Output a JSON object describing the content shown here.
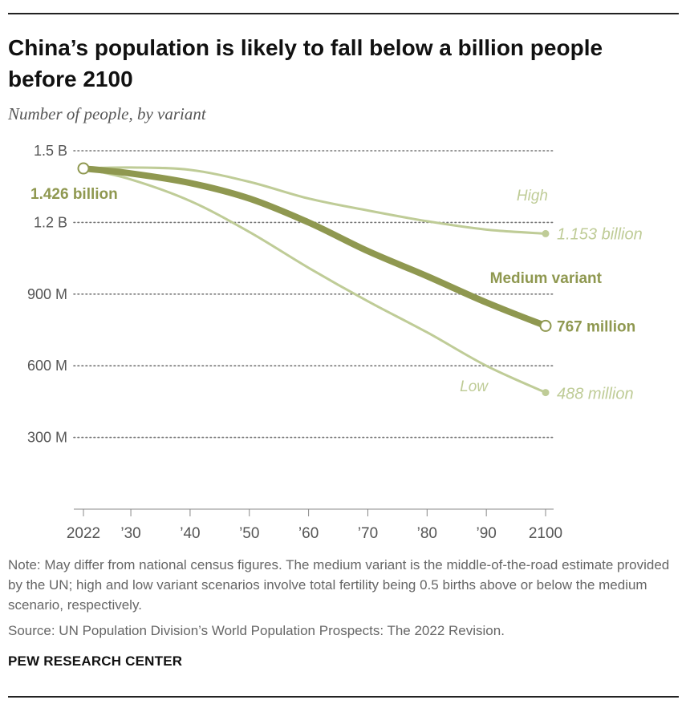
{
  "header": {
    "title": "China’s population is likely to fall below a billion people before 2100",
    "subtitle": "Number of people, by variant"
  },
  "chart_data": {
    "type": "line",
    "title": "China’s population is likely to fall below a billion people before 2100",
    "subtitle": "Number of people, by variant",
    "xlabel": "",
    "ylabel": "",
    "x_tick_values": [
      2022,
      2030,
      2040,
      2050,
      2060,
      2070,
      2080,
      2090,
      2100
    ],
    "x_tick_labels": [
      "2022",
      "’30",
      "’40",
      "’50",
      "’60",
      "’70",
      "’80",
      "’90",
      "2100"
    ],
    "y_tick_values": [
      300,
      600,
      900,
      1200,
      1500
    ],
    "y_tick_labels": [
      "300 M",
      "600 M",
      "900 M",
      "1.2 B",
      "1.5 B"
    ],
    "xlim": [
      2022,
      2100
    ],
    "ylim": [
      0,
      1500
    ],
    "grid": true,
    "series": [
      {
        "name": "High",
        "label": "High",
        "end_label": "1.153 billion",
        "color": "#bfcc97",
        "x": [
          2022,
          2030,
          2040,
          2050,
          2060,
          2070,
          2080,
          2090,
          2100
        ],
        "values": [
          1426,
          1430,
          1420,
          1370,
          1300,
          1250,
          1205,
          1170,
          1153
        ]
      },
      {
        "name": "Medium variant",
        "label": "Medium variant",
        "end_label": "767 million",
        "start_label": "1.426 billion",
        "color": "#8f9850",
        "x": [
          2022,
          2030,
          2040,
          2050,
          2060,
          2070,
          2080,
          2090,
          2100
        ],
        "values": [
          1426,
          1405,
          1365,
          1300,
          1200,
          1080,
          975,
          865,
          767
        ]
      },
      {
        "name": "Low",
        "label": "Low",
        "end_label": "488 million",
        "color": "#bfcc97",
        "x": [
          2022,
          2030,
          2040,
          2050,
          2060,
          2070,
          2080,
          2090,
          2100
        ],
        "values": [
          1426,
          1380,
          1290,
          1160,
          1010,
          870,
          740,
          600,
          488
        ]
      }
    ]
  },
  "footer": {
    "note": "Note: May differ from national census figures. The medium variant is the middle-of-the-road estimate provided by the UN; high and low variant scenarios involve total fertility being 0.5 births above or below the medium scenario, respectively.",
    "source": "Source: UN Population Division’s World Population Prospects: The 2022 Revision.",
    "brand": "PEW RESEARCH CENTER"
  }
}
